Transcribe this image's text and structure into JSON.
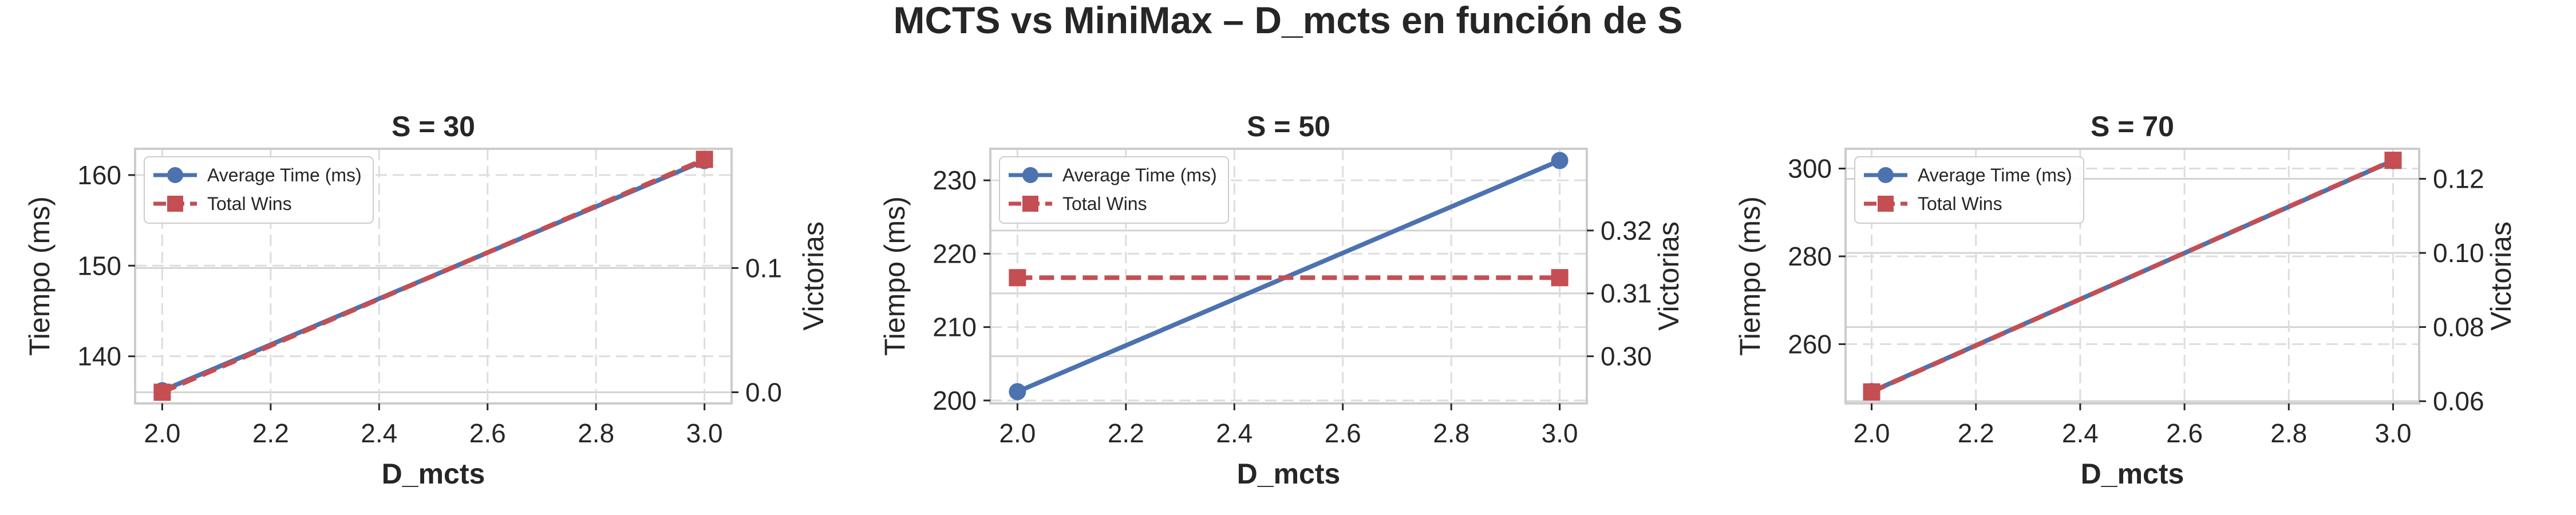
{
  "figure": {
    "title": "MCTS vs MiniMax – D_mcts en función de S"
  },
  "chart_data": [
    {
      "type": "line",
      "title": "S = 30",
      "xlabel": "D_mcts",
      "ylabel": "Tiempo (ms)",
      "y2label": "Victorias",
      "x": [
        2.0,
        3.0
      ],
      "xlim": [
        1.95,
        3.05
      ],
      "xticks": [
        "2.0",
        "2.2",
        "2.4",
        "2.6",
        "2.8",
        "3.0"
      ],
      "ylim": [
        134.8,
        162.9
      ],
      "yticks": [
        "140",
        "150",
        "160"
      ],
      "y2lim": [
        -0.009,
        0.196
      ],
      "y2ticks": [
        "0.0",
        "0.1"
      ],
      "grid": true,
      "legend_position": "upper-left",
      "series": [
        {
          "name": "Average Time (ms)",
          "axis": "left",
          "values": [
            136.2,
            161.6
          ],
          "color": "#4c72b0",
          "marker": "circle",
          "style": "solid"
        },
        {
          "name": "Total Wins",
          "axis": "right",
          "values": [
            0.0,
            0.1875
          ],
          "color": "#c44e52",
          "marker": "square",
          "style": "dashed"
        }
      ]
    },
    {
      "type": "line",
      "title": "S = 50",
      "xlabel": "D_mcts",
      "ylabel": "Tiempo (ms)",
      "y2label": "Victorias",
      "x": [
        2.0,
        3.0
      ],
      "xlim": [
        1.95,
        3.05
      ],
      "xticks": [
        "2.0",
        "2.2",
        "2.4",
        "2.6",
        "2.8",
        "3.0"
      ],
      "ylim": [
        199.6,
        234.3
      ],
      "yticks": [
        "200",
        "210",
        "220",
        "230"
      ],
      "y2lim": [
        0.2925,
        0.333
      ],
      "y2ticks": [
        "0.30",
        "0.31",
        "0.32"
      ],
      "grid": true,
      "legend_position": "upper-left",
      "series": [
        {
          "name": "Average Time (ms)",
          "axis": "left",
          "values": [
            201.2,
            232.7
          ],
          "color": "#4c72b0",
          "marker": "circle",
          "style": "solid"
        },
        {
          "name": "Total Wins",
          "axis": "right",
          "values": [
            0.3125,
            0.3125
          ],
          "color": "#c44e52",
          "marker": "square",
          "style": "dashed"
        }
      ]
    },
    {
      "type": "line",
      "title": "S = 70",
      "xlabel": "D_mcts",
      "ylabel": "Tiempo (ms)",
      "y2label": "Victorias",
      "x": [
        2.0,
        3.0
      ],
      "xlim": [
        1.95,
        3.05
      ],
      "xticks": [
        "2.0",
        "2.2",
        "2.4",
        "2.6",
        "2.8",
        "3.0"
      ],
      "ylim": [
        246.5,
        304.5
      ],
      "yticks": [
        "260",
        "280",
        "300"
      ],
      "y2lim": [
        0.0594,
        0.1281
      ],
      "y2ticks": [
        "0.06",
        "0.08",
        "0.10",
        "0.12"
      ],
      "grid": true,
      "legend_position": "upper-left",
      "series": [
        {
          "name": "Average Time (ms)",
          "axis": "left",
          "values": [
            249.2,
            301.8
          ],
          "color": "#4c72b0",
          "marker": "circle",
          "style": "solid"
        },
        {
          "name": "Total Wins",
          "axis": "right",
          "values": [
            0.0625,
            0.125
          ],
          "color": "#c44e52",
          "marker": "square",
          "style": "dashed"
        }
      ]
    }
  ]
}
